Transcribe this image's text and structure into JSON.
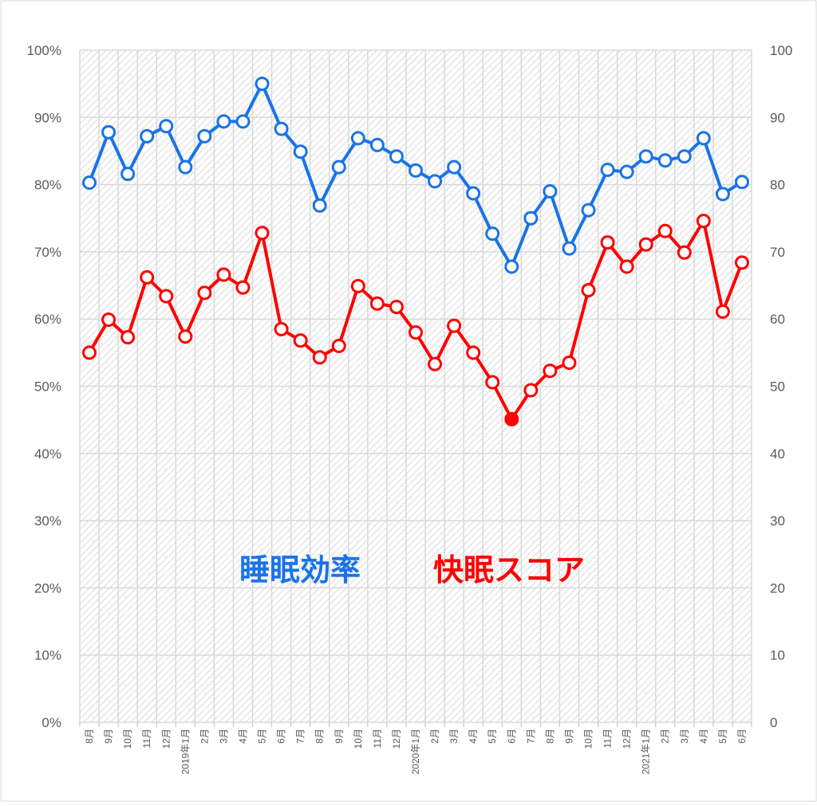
{
  "chart_data": {
    "type": "line",
    "categories": [
      "8月",
      "9月",
      "10月",
      "11月",
      "12月",
      "2019年1月",
      "2月",
      "3月",
      "4月",
      "5月",
      "6月",
      "7月",
      "8月",
      "9月",
      "10月",
      "11月",
      "12月",
      "2020年1月",
      "2月",
      "3月",
      "4月",
      "5月",
      "6月",
      "7月",
      "8月",
      "9月",
      "10月",
      "11月",
      "12月",
      "2021年1月",
      "2月",
      "3月",
      "4月",
      "5月",
      "6月"
    ],
    "series": [
      {
        "name": "睡眠効率",
        "axis": "left",
        "color": "#1a73e8",
        "values": [
          80.3,
          87.8,
          81.6,
          87.2,
          88.7,
          82.6,
          87.2,
          89.4,
          89.4,
          95.0,
          88.3,
          84.9,
          76.9,
          82.6,
          86.9,
          85.9,
          84.2,
          82.1,
          80.5,
          82.6,
          78.7,
          72.7,
          67.8,
          75.0,
          79.0,
          70.5,
          76.2,
          82.2,
          81.9,
          84.2,
          83.6,
          84.2,
          86.9,
          78.6,
          80.4
        ]
      },
      {
        "name": "快眠スコア",
        "axis": "right",
        "color": "#ff0000",
        "values": [
          55,
          59.9,
          57.3,
          66.2,
          63.4,
          57.4,
          63.9,
          66.6,
          64.7,
          72.8,
          58.5,
          56.8,
          54.3,
          56.0,
          64.9,
          62.3,
          61.8,
          58.0,
          53.3,
          59.0,
          55.0,
          50.6,
          45.1,
          49.4,
          52.3,
          53.5,
          64.3,
          71.4,
          67.8,
          71.1,
          73.1,
          69.9,
          74.6,
          61.1,
          68.4
        ]
      }
    ],
    "highlight": {
      "series": 1,
      "index": 22
    },
    "y_left": {
      "min": 0,
      "max": 100,
      "step": 10,
      "format": "percent",
      "ticks": [
        "0%",
        "10%",
        "20%",
        "30%",
        "40%",
        "50%",
        "60%",
        "70%",
        "80%",
        "90%",
        "100%"
      ]
    },
    "y_right": {
      "min": 0,
      "max": 100,
      "step": 10,
      "ticks": [
        "0",
        "10",
        "20",
        "30",
        "40",
        "50",
        "60",
        "70",
        "80",
        "90",
        "100"
      ]
    },
    "grid": true
  }
}
